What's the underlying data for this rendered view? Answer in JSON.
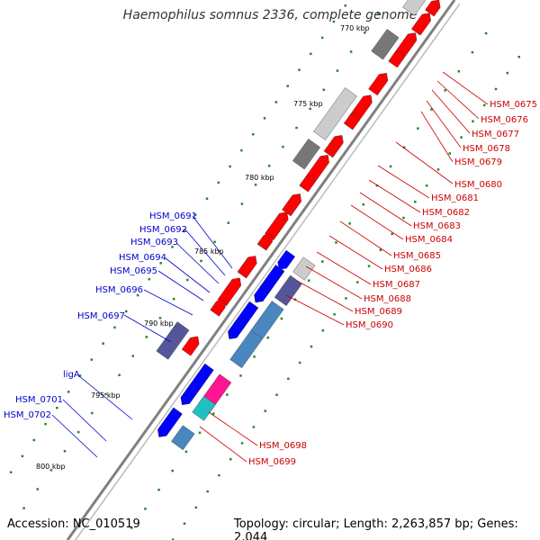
{
  "title": "Haemophilus somnus 2336, complete genome",
  "footer": {
    "accession": "Accession: NC_010519",
    "topology": "Topology: circular; Length: 2,263,857 bp; Genes: 2,044"
  },
  "colors": {
    "forward_genes": "#0000ff",
    "reverse_genes": "#ff0000",
    "backbone": "#808080",
    "gc_dots": "#228b22",
    "label_left": "#0000cc",
    "label_right": "#cc0000"
  },
  "ticks": [
    "770 kbp",
    "775 kbp",
    "780 kbp",
    "785 kbp",
    "790 kbp",
    "795 kbp",
    "800 kbp"
  ],
  "labels_left": [
    "HSM_0691",
    "HSM_0692",
    "HSM_0693",
    "HSM_0694",
    "HSM_0695",
    "HSM_0696",
    "HSM_0697",
    "ligA",
    "HSM_0701",
    "HSM_0702"
  ],
  "labels_right": [
    "HSM_0675",
    "HSM_0676",
    "HSM_0677",
    "HSM_0678",
    "HSM_0679",
    "HSM_0680",
    "HSM_0681",
    "HSM_0682",
    "HSM_0683",
    "HSM_0684",
    "HSM_0685",
    "HSM_0686",
    "HSM_0687",
    "HSM_0688",
    "HSM_0689",
    "HSM_0690",
    "HSM_0698",
    "HSM_0699"
  ]
}
